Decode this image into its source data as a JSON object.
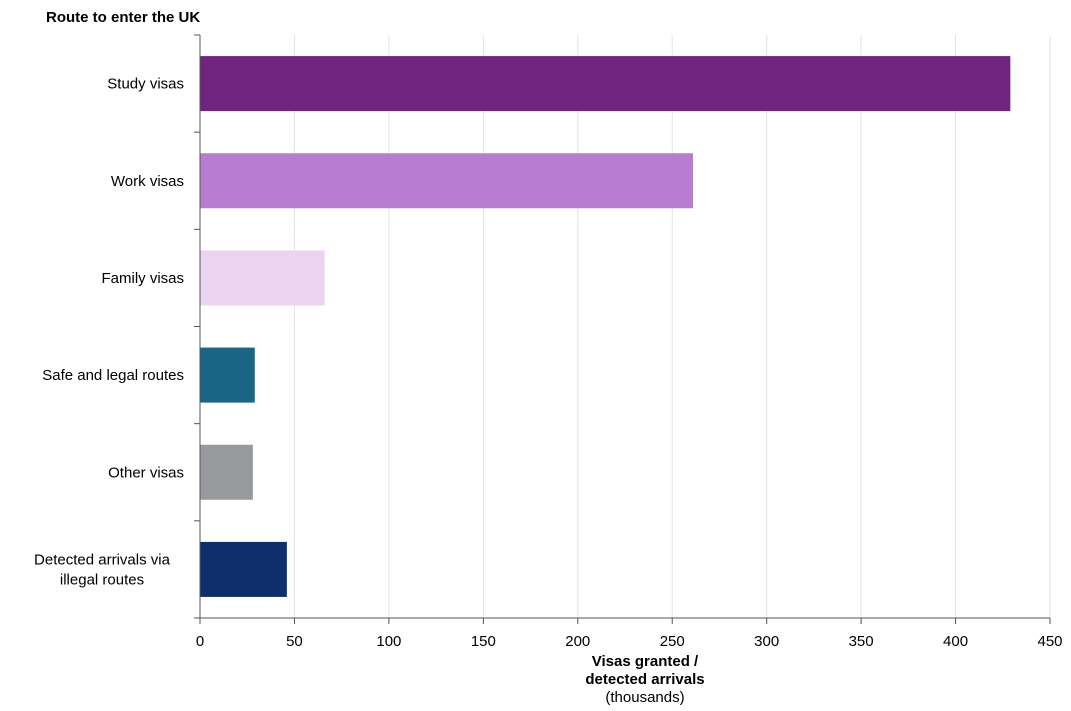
{
  "chart_data": {
    "type": "bar",
    "orientation": "horizontal",
    "categories": [
      "Study visas",
      "Work visas",
      "Family visas",
      "Safe and legal routes",
      "Other visas",
      "Detected arrivals via illegal routes"
    ],
    "values": [
      429,
      261,
      66,
      29,
      28,
      46
    ],
    "colors": [
      "#70237f",
      "#b87cd0",
      "#ead4f0",
      "#1a6486",
      "#97999c",
      "#0f2f6c"
    ],
    "ylabel": "Route to enter the UK",
    "xlabel": "Visas granted / detected arrivals",
    "xlabel_line1": "Visas granted /",
    "xlabel_line2": "detected arrivals",
    "xlabel_unit": "(thousands)",
    "xlim": [
      0,
      450
    ],
    "xticks": [
      0,
      50,
      100,
      150,
      200,
      250,
      300,
      350,
      400,
      450
    ],
    "grid": true
  }
}
